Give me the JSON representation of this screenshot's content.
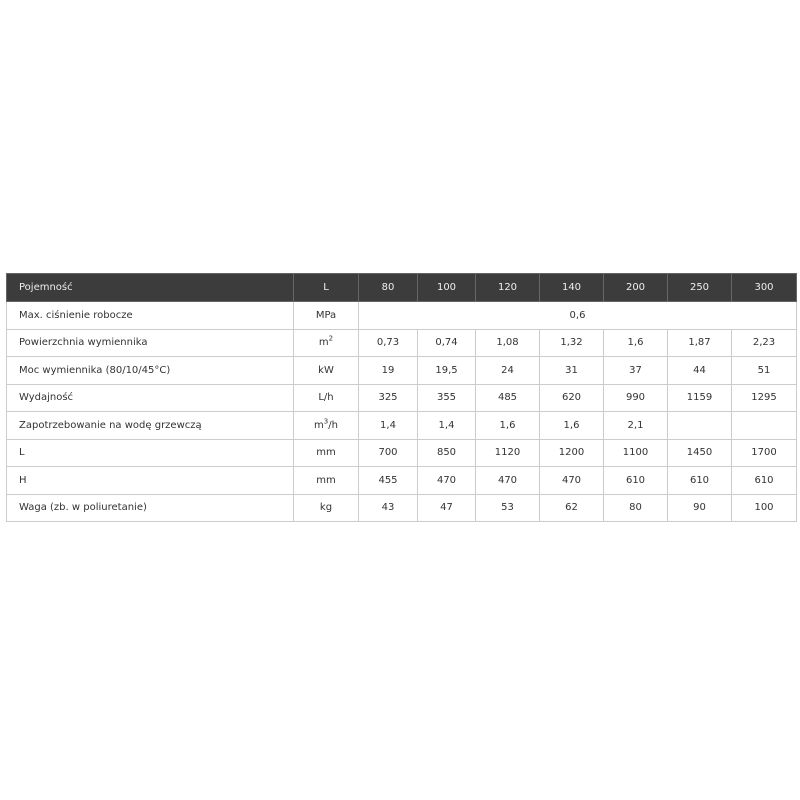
{
  "table": {
    "header": {
      "label": "Pojemność",
      "unit": "L",
      "values": [
        "80",
        "100",
        "120",
        "140",
        "200",
        "250",
        "300"
      ]
    },
    "rows": [
      {
        "label": "Max. ciśnienie robocze",
        "unit": "MPa",
        "merged_value": "0,6"
      },
      {
        "label": "Powierzchnia wymiennika",
        "unit_base": "m",
        "unit_sup": "2",
        "values": [
          "0,73",
          "0,74",
          "1,08",
          "1,32",
          "1,6",
          "1,87",
          "2,23"
        ]
      },
      {
        "label": "Moc wymiennika (80/10/45°C)",
        "unit": "kW",
        "values": [
          "19",
          "19,5",
          "24",
          "31",
          "37",
          "44",
          "51"
        ]
      },
      {
        "label": "Wydajność",
        "unit": "L/h",
        "values": [
          "325",
          "355",
          "485",
          "620",
          "990",
          "1159",
          "1295"
        ]
      },
      {
        "label": "Zapotrzebowanie na wodę grzewczą",
        "unit_base": "m",
        "unit_sup": "3",
        "unit_tail": "/h",
        "values": [
          "1,4",
          "1,4",
          "1,6",
          "1,6",
          "2,1",
          "",
          ""
        ]
      },
      {
        "label": "L",
        "unit": "mm",
        "values": [
          "700",
          "850",
          "1120",
          "1200",
          "1100",
          "1450",
          "1700"
        ]
      },
      {
        "label": "H",
        "unit": "mm",
        "values": [
          "455",
          "470",
          "470",
          "470",
          "610",
          "610",
          "610"
        ]
      },
      {
        "label": "Waga (zb. w poliuretanie)",
        "unit": "kg",
        "values": [
          "43",
          "47",
          "53",
          "62",
          "80",
          "90",
          "100"
        ]
      }
    ]
  }
}
